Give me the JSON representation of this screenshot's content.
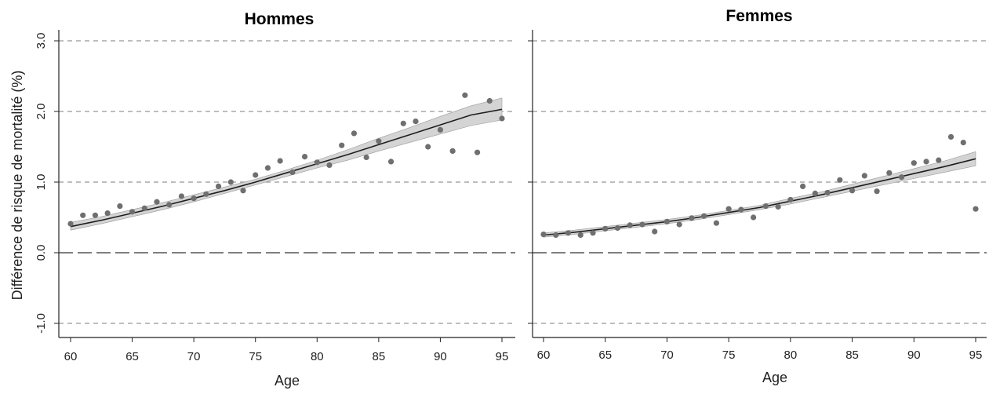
{
  "chart_data": [
    {
      "type": "scatter",
      "title": "Hommes",
      "xlabel": "Age",
      "ylabel": "Différence de risque de mortalité (%)",
      "xlim": [
        59.5,
        95.5
      ],
      "ylim": [
        -1.15,
        3.1
      ],
      "x_ticks": [
        "60",
        "65",
        "70",
        "75",
        "80",
        "85",
        "90",
        "95"
      ],
      "y_ticks": [
        "-1.0",
        "0.0",
        "1.0",
        "2.0",
        "3.0"
      ],
      "reference_lines": {
        "dashed_grey": [
          -1.0,
          1.0,
          2.0,
          3.0
        ],
        "long_dash_dark": [
          0.0
        ]
      },
      "series": [
        {
          "kind": "points",
          "x": [
            60,
            61,
            62,
            63,
            64,
            65,
            66,
            67,
            68,
            69,
            70,
            71,
            72,
            73,
            74,
            75,
            76,
            77,
            78,
            79,
            80,
            81,
            82,
            83,
            84,
            85,
            86,
            87,
            88,
            89,
            90,
            91,
            92,
            93,
            94,
            95
          ],
          "values": [
            0.41,
            0.53,
            0.53,
            0.56,
            0.66,
            0.58,
            0.63,
            0.72,
            0.68,
            0.8,
            0.77,
            0.83,
            0.94,
            1.0,
            0.88,
            1.1,
            1.2,
            1.3,
            1.14,
            1.36,
            1.28,
            1.24,
            1.52,
            1.69,
            1.35,
            1.58,
            1.29,
            1.83,
            1.86,
            1.5,
            1.74,
            1.44,
            2.23,
            1.42,
            2.15,
            1.9
          ]
        },
        {
          "kind": "fit",
          "x": [
            60,
            62.5,
            65,
            67.5,
            70,
            72.5,
            75,
            77.5,
            80,
            82.5,
            85,
            87.5,
            90,
            92.5,
            95
          ],
          "values": [
            0.37,
            0.46,
            0.56,
            0.66,
            0.77,
            0.88,
            1.0,
            1.13,
            1.26,
            1.39,
            1.53,
            1.67,
            1.81,
            1.95,
            2.03
          ],
          "lower": [
            0.32,
            0.41,
            0.51,
            0.61,
            0.72,
            0.84,
            0.96,
            1.08,
            1.2,
            1.31,
            1.44,
            1.56,
            1.68,
            1.8,
            1.88
          ],
          "upper": [
            0.43,
            0.51,
            0.61,
            0.71,
            0.82,
            0.93,
            1.04,
            1.17,
            1.31,
            1.46,
            1.62,
            1.77,
            1.93,
            2.08,
            2.19
          ]
        }
      ]
    },
    {
      "type": "scatter",
      "title": "Femmes",
      "xlabel": "Age",
      "ylabel": "",
      "xlim": [
        59.5,
        95.5
      ],
      "ylim": [
        -1.15,
        3.1
      ],
      "x_ticks": [
        "60",
        "65",
        "70",
        "75",
        "80",
        "85",
        "90",
        "95"
      ],
      "y_ticks": [],
      "reference_lines": {
        "dashed_grey": [
          -1.0,
          1.0,
          2.0,
          3.0
        ],
        "long_dash_dark": [
          0.0
        ]
      },
      "series": [
        {
          "kind": "points",
          "x": [
            60,
            61,
            62,
            63,
            64,
            65,
            66,
            67,
            68,
            69,
            70,
            71,
            72,
            73,
            74,
            75,
            76,
            77,
            78,
            79,
            80,
            81,
            82,
            83,
            84,
            85,
            86,
            87,
            88,
            89,
            90,
            91,
            92,
            93,
            94,
            95
          ],
          "values": [
            0.26,
            0.25,
            0.28,
            0.25,
            0.28,
            0.34,
            0.35,
            0.39,
            0.4,
            0.3,
            0.44,
            0.4,
            0.49,
            0.52,
            0.42,
            0.62,
            0.61,
            0.5,
            0.66,
            0.65,
            0.75,
            0.94,
            0.84,
            0.85,
            1.03,
            0.88,
            1.09,
            0.87,
            1.13,
            1.07,
            1.27,
            1.29,
            1.31,
            1.64,
            1.56,
            0.62
          ]
        },
        {
          "kind": "fit",
          "x": [
            60,
            62.5,
            65,
            67.5,
            70,
            72.5,
            75,
            77.5,
            80,
            82.5,
            85,
            87.5,
            90,
            92.5,
            95
          ],
          "values": [
            0.25,
            0.29,
            0.34,
            0.39,
            0.44,
            0.5,
            0.57,
            0.64,
            0.73,
            0.82,
            0.92,
            1.02,
            1.12,
            1.22,
            1.33
          ],
          "lower": [
            0.22,
            0.26,
            0.31,
            0.36,
            0.41,
            0.47,
            0.54,
            0.61,
            0.69,
            0.78,
            0.87,
            0.96,
            1.05,
            1.14,
            1.23
          ],
          "upper": [
            0.28,
            0.32,
            0.37,
            0.42,
            0.47,
            0.53,
            0.6,
            0.67,
            0.77,
            0.86,
            0.97,
            1.08,
            1.19,
            1.3,
            1.43
          ]
        }
      ]
    }
  ],
  "colors": {
    "points": "#6f6f6f",
    "fit_line": "#1e1e1e",
    "ci_band": "#d4d4d4",
    "dashed_grey": "#a8a8a8",
    "zero_line": "#555555",
    "axis": "#222222"
  }
}
